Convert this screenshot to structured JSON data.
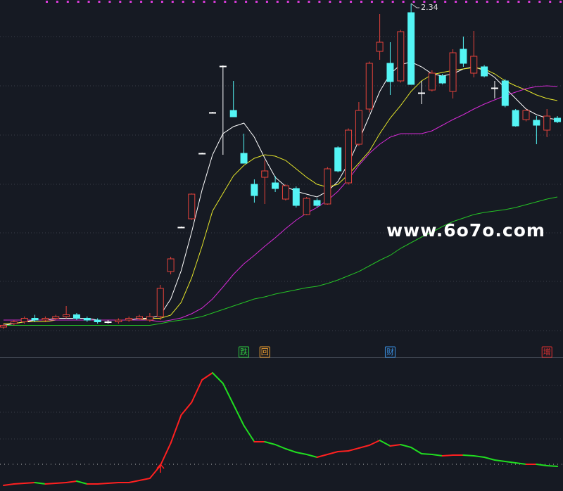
{
  "chart_data": [
    {
      "type": "candlestick",
      "open": [
        0.5,
        0.52,
        0.53,
        0.55,
        0.54,
        0.55,
        0.56,
        0.57,
        0.55,
        0.54,
        0.53,
        0.53,
        0.54,
        0.55,
        0.54,
        0.56,
        0.816,
        1.068,
        1.116,
        1.488,
        1.72,
        1.984,
        1.732,
        1.488,
        1.312,
        1.352,
        1.32,
        1.228,
        1.288,
        1.14,
        1.22,
        1.2,
        1.52,
        1.32,
        1.54,
        1.74,
        2.068,
        2.0,
        1.9,
        2.288,
        1.832,
        1.848,
        1.928,
        1.84,
        2.08,
        1.944,
        1.98,
        1.86,
        1.9,
        1.732,
        1.68,
        1.676,
        1.62,
        1.688
      ],
      "high": [
        0.52,
        0.54,
        0.56,
        0.57,
        0.56,
        0.57,
        0.62,
        0.58,
        0.56,
        0.55,
        0.54,
        0.55,
        0.56,
        0.57,
        0.58,
        0.74,
        0.9,
        1.072,
        1.26,
        1.492,
        1.724,
        1.988,
        1.9,
        1.6,
        1.34,
        1.448,
        1.36,
        1.312,
        1.3,
        1.24,
        1.232,
        1.41,
        1.528,
        1.63,
        1.78,
        2.01,
        2.28,
        2.12,
        2.19,
        2.34,
        1.9,
        1.96,
        1.94,
        2.08,
        2.152,
        2.184,
        1.99,
        1.9,
        1.91,
        1.74,
        1.74,
        1.7,
        1.74,
        1.7
      ],
      "low": [
        0.49,
        0.51,
        0.52,
        0.53,
        0.53,
        0.54,
        0.55,
        0.54,
        0.53,
        0.52,
        0.52,
        0.52,
        0.53,
        0.54,
        0.53,
        0.54,
        0.8,
        1.064,
        1.11,
        1.484,
        1.716,
        1.48,
        1.696,
        1.432,
        1.208,
        1.2,
        1.268,
        1.22,
        1.18,
        1.136,
        1.18,
        1.196,
        1.38,
        1.31,
        1.53,
        1.72,
        2.02,
        1.82,
        1.89,
        1.88,
        1.768,
        1.84,
        1.88,
        1.8,
        1.98,
        1.92,
        1.92,
        1.8,
        1.75,
        1.64,
        1.67,
        1.54,
        1.58,
        1.66
      ],
      "close": [
        0.51,
        0.53,
        0.55,
        0.54,
        0.55,
        0.56,
        0.57,
        0.55,
        0.54,
        0.53,
        0.53,
        0.54,
        0.55,
        0.56,
        0.56,
        0.72,
        0.888,
        1.068,
        1.256,
        1.488,
        1.72,
        1.984,
        1.696,
        1.432,
        1.248,
        1.388,
        1.288,
        1.304,
        1.192,
        1.232,
        1.192,
        1.4,
        1.388,
        1.62,
        1.732,
        2.0,
        2.12,
        1.896,
        2.18,
        1.88,
        1.832,
        1.944,
        1.888,
        2.06,
        2.0,
        2.04,
        1.928,
        1.86,
        1.76,
        1.644,
        1.732,
        1.648,
        1.7,
        1.668
      ],
      "ylim": [
        0.328,
        2.36
      ],
      "up_color": "#e5423b",
      "down_color": "#54f5f5",
      "flat_color": "#ffffff",
      "ma": [
        {
          "color": "#ffffff",
          "values": [
            0.51,
            0.52,
            0.53,
            0.54,
            0.54,
            0.55,
            0.55,
            0.55,
            0.55,
            0.54,
            0.54,
            0.54,
            0.54,
            0.55,
            0.55,
            0.568,
            0.66,
            0.82,
            1.04,
            1.28,
            1.48,
            1.6,
            1.64,
            1.66,
            1.58,
            1.46,
            1.352,
            1.3,
            1.272,
            1.256,
            1.24,
            1.272,
            1.328,
            1.432,
            1.56,
            1.7,
            1.84,
            1.94,
            1.992,
            2.008,
            1.98,
            1.94,
            1.928,
            1.94,
            1.968,
            1.98,
            1.96,
            1.92,
            1.86,
            1.8,
            1.74,
            1.708,
            1.688,
            1.68
          ]
        },
        {
          "color": "#e6e62a",
          "values": [
            0.52,
            0.52,
            0.53,
            0.53,
            0.53,
            0.54,
            0.54,
            0.54,
            0.54,
            0.54,
            0.54,
            0.54,
            0.54,
            0.54,
            0.55,
            0.55,
            0.568,
            0.64,
            0.78,
            0.96,
            1.16,
            1.26,
            1.36,
            1.42,
            1.46,
            1.48,
            1.472,
            1.448,
            1.4,
            1.352,
            1.312,
            1.296,
            1.312,
            1.368,
            1.432,
            1.5,
            1.6,
            1.688,
            1.76,
            1.84,
            1.9,
            1.936,
            1.948,
            1.96,
            1.968,
            1.976,
            1.968,
            1.94,
            1.9,
            1.872,
            1.848,
            1.82,
            1.8,
            1.788
          ]
        },
        {
          "color": "#d62ad6",
          "values": [
            0.54,
            0.54,
            0.54,
            0.54,
            0.54,
            0.54,
            0.54,
            0.54,
            0.54,
            0.54,
            0.54,
            0.54,
            0.54,
            0.54,
            0.54,
            0.53,
            0.54,
            0.552,
            0.576,
            0.608,
            0.66,
            0.728,
            0.8,
            0.86,
            0.908,
            0.96,
            1.008,
            1.06,
            1.108,
            1.148,
            1.18,
            1.22,
            1.272,
            1.34,
            1.42,
            1.488,
            1.54,
            1.58,
            1.6,
            1.6,
            1.6,
            1.616,
            1.648,
            1.68,
            1.708,
            1.74,
            1.768,
            1.792,
            1.816,
            1.836,
            1.856,
            1.868,
            1.872,
            1.868
          ]
        },
        {
          "color": "#25c425",
          "values": [
            0.51,
            0.51,
            0.51,
            0.51,
            0.51,
            0.51,
            0.51,
            0.51,
            0.51,
            0.51,
            0.51,
            0.51,
            0.51,
            0.51,
            0.51,
            0.52,
            0.532,
            0.54,
            0.548,
            0.56,
            0.58,
            0.6,
            0.62,
            0.64,
            0.66,
            0.672,
            0.688,
            0.7,
            0.712,
            0.724,
            0.732,
            0.748,
            0.768,
            0.792,
            0.816,
            0.848,
            0.88,
            0.908,
            0.948,
            0.98,
            1.012,
            1.04,
            1.072,
            1.1,
            1.12,
            1.14,
            1.152,
            1.16,
            1.168,
            1.18,
            1.196,
            1.212,
            1.228,
            1.24
          ]
        }
      ],
      "signals": [
        {
          "label": "跌",
          "at": 23,
          "color": "#2ecc40"
        },
        {
          "label": "回",
          "at": 25,
          "color": "#f0a030"
        },
        {
          "label": "财",
          "at": 37,
          "color": "#3a8fe0"
        },
        {
          "label": "增",
          "at": 52,
          "color": "#e03030"
        }
      ],
      "watermark": "www.6o7o.com"
    },
    {
      "type": "line",
      "values": [
        8,
        10,
        11,
        12,
        10,
        11,
        12,
        14,
        10,
        10,
        11,
        12,
        12,
        15,
        18,
        36,
        68,
        108,
        126,
        158,
        168,
        153,
        123,
        93,
        70,
        70,
        66,
        60,
        55,
        52,
        48,
        52,
        56,
        57,
        61,
        65,
        72,
        64,
        66,
        62,
        53,
        52,
        50,
        51,
        51,
        50,
        48,
        44,
        42,
        40,
        38,
        38,
        36,
        35
      ],
      "ylim": [
        0,
        180
      ],
      "reference": 38,
      "up_color": "#ff2020",
      "down_color": "#20dd20"
    }
  ]
}
